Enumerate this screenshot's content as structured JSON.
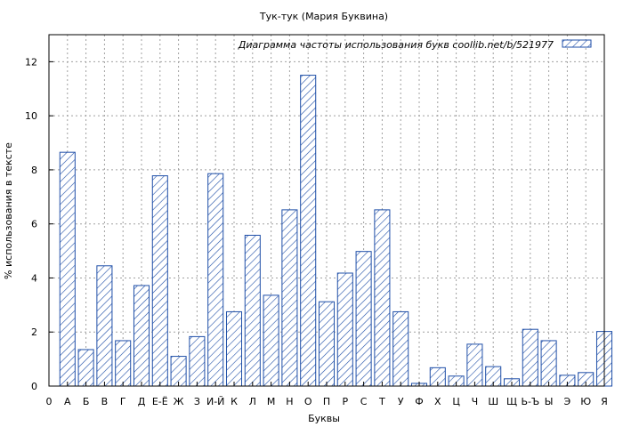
{
  "chart_data": {
    "type": "bar",
    "title": "Тук-тук (Мария Буквина)",
    "xlabel": "Буквы",
    "ylabel": "% использования в тексте",
    "legend": {
      "label": "Диаграмма частоты использования букв  coollib.net/b/521977",
      "position": "top-right"
    },
    "categories": [
      "А",
      "Б",
      "В",
      "Г",
      "Д",
      "Е-Ё",
      "Ж",
      "З",
      "И-Й",
      "К",
      "Л",
      "М",
      "Н",
      "О",
      "П",
      "Р",
      "С",
      "Т",
      "У",
      "Ф",
      "Х",
      "Ц",
      "Ч",
      "Ш",
      "Щ",
      "Ь-Ъ",
      "Ы",
      "Э",
      "Ю",
      "Я"
    ],
    "values": [
      8.65,
      1.35,
      4.45,
      1.68,
      3.72,
      7.78,
      1.1,
      1.83,
      7.86,
      2.75,
      5.58,
      3.36,
      6.52,
      11.5,
      3.12,
      4.18,
      4.98,
      6.52,
      2.75,
      0.1,
      0.68,
      0.37,
      1.55,
      0.72,
      0.27,
      2.1,
      1.68,
      0.4,
      0.5,
      2.02
    ],
    "x_tick_labels": [
      "0",
      "А",
      "Б",
      "В",
      "Г",
      "Д",
      "Е-Ё",
      "Ж",
      "З",
      "И-Й",
      "К",
      "Л",
      "М",
      "Н",
      "О",
      "П",
      "Р",
      "С",
      "Т",
      "У",
      "Ф",
      "Х",
      "Ц",
      "Ч",
      "Ш",
      "Щ",
      "Ь-Ъ",
      "Ы",
      "Э",
      "Ю",
      "Я"
    ],
    "y_ticks": [
      0,
      2,
      4,
      6,
      8,
      10,
      12
    ],
    "ylim": [
      0,
      13
    ],
    "grid": true,
    "colors": {
      "bar_stroke": "#1f4fa8",
      "grid": "#a0a0a0"
    }
  }
}
